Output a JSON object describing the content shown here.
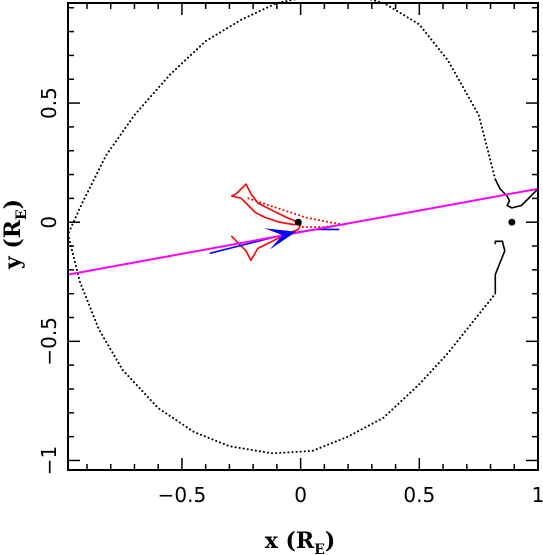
{
  "chart_data": {
    "type": "line",
    "title": "",
    "xlabel": {
      "main": "x (R",
      "sub": "E",
      "close": ")"
    },
    "ylabel": {
      "main": "y (R",
      "sub": "E",
      "close": ")"
    },
    "xlim": [
      -0.98,
      1.0
    ],
    "ylim": [
      -1.04,
      0.92
    ],
    "xticks": [
      {
        "value": -0.5,
        "label": "−0.5"
      },
      {
        "value": 0,
        "label": "0"
      },
      {
        "value": 0.5,
        "label": "0.5"
      },
      {
        "value": 1,
        "label": "1"
      }
    ],
    "yticks": [
      {
        "value": -1,
        "label": "−1"
      },
      {
        "value": -0.5,
        "label": "−0.5"
      },
      {
        "value": 0,
        "label": "0"
      },
      {
        "value": 0.5,
        "label": "0.5"
      }
    ],
    "series": [
      {
        "style": "dotted",
        "color": "#000000",
        "x": [
          0.82,
          0.75,
          0.62,
          0.5,
          0.35,
          0.2,
          0.05,
          -0.1,
          -0.25,
          -0.4,
          -0.55,
          -0.7,
          -0.82,
          -0.92,
          -0.98
        ],
        "y": [
          0.18,
          0.45,
          0.68,
          0.83,
          0.92,
          0.96,
          0.95,
          0.92,
          0.85,
          0.76,
          0.62,
          0.45,
          0.28,
          0.08,
          -0.05
        ]
      },
      {
        "style": "dotted",
        "color": "#000000",
        "x": [
          -0.98,
          -0.93,
          -0.85,
          -0.75,
          -0.6,
          -0.45,
          -0.3,
          -0.12,
          0.05,
          0.2,
          0.35,
          0.5,
          0.62,
          0.74,
          0.82
        ],
        "y": [
          -0.05,
          -0.25,
          -0.45,
          -0.62,
          -0.78,
          -0.88,
          -0.94,
          -0.97,
          -0.96,
          -0.9,
          -0.82,
          -0.68,
          -0.55,
          -0.4,
          -0.3
        ]
      },
      {
        "style": "solid",
        "color": "#000000",
        "x": [
          0.82,
          0.84,
          0.87,
          0.88,
          0.87,
          0.89,
          0.93,
          0.97,
          1.0
        ],
        "y": [
          0.18,
          0.14,
          0.11,
          0.09,
          0.07,
          0.06,
          0.07,
          0.11,
          0.14
        ]
      },
      {
        "style": "solid",
        "color": "#000000",
        "x": [
          0.82,
          0.82,
          0.84,
          0.86,
          0.85,
          0.82,
          0.82
        ],
        "y": [
          -0.3,
          -0.22,
          -0.17,
          -0.12,
          -0.08,
          -0.08,
          -0.09
        ]
      },
      {
        "style": "solid",
        "color": "#ff0000",
        "x": [
          -0.01,
          -0.06,
          -0.12,
          -0.18,
          -0.21,
          -0.23,
          -0.27,
          -0.29,
          -0.25,
          -0.22,
          -0.19,
          -0.15,
          -0.09,
          -0.03,
          0.0,
          -0.01,
          -0.06,
          -0.12,
          -0.18,
          -0.21,
          -0.23,
          -0.28,
          -0.29
        ],
        "y": [
          0.0,
          0.02,
          0.05,
          0.08,
          0.12,
          0.16,
          0.12,
          0.11,
          0.1,
          0.07,
          0.04,
          0.02,
          0.0,
          -0.01,
          -0.01,
          -0.03,
          -0.05,
          -0.08,
          -0.11,
          -0.16,
          -0.12,
          -0.07,
          -0.06
        ]
      },
      {
        "style": "dotted",
        "color": "#ff0000",
        "x": [
          -0.22,
          -0.1,
          0.02,
          0.12,
          0.18,
          0.1,
          0.0
        ],
        "y": [
          0.1,
          0.06,
          0.02,
          0.0,
          -0.01,
          -0.02,
          -0.02
        ]
      },
      {
        "style": "solid",
        "color": "#0000ff",
        "x": [
          -0.38,
          -0.3,
          -0.22,
          -0.14,
          -0.06,
          0.0,
          0.06,
          0.12,
          0.16
        ],
        "y": [
          -0.13,
          -0.11,
          -0.09,
          -0.07,
          -0.05,
          -0.04,
          -0.03,
          -0.03,
          -0.03
        ]
      },
      {
        "style": "solid",
        "color": "#ff00ff",
        "x": [
          -0.98,
          1.0
        ],
        "y": [
          -0.22,
          0.14
        ]
      }
    ],
    "points": [
      {
        "x": 0.89,
        "y": 0.0,
        "color": "#000000"
      },
      {
        "x": -0.01,
        "y": 0.0,
        "color": "#000000"
      }
    ],
    "arrow": {
      "x": -0.06,
      "y": -0.05,
      "dx": 0.08,
      "dy": 0.02,
      "color": "#0000ff"
    }
  }
}
